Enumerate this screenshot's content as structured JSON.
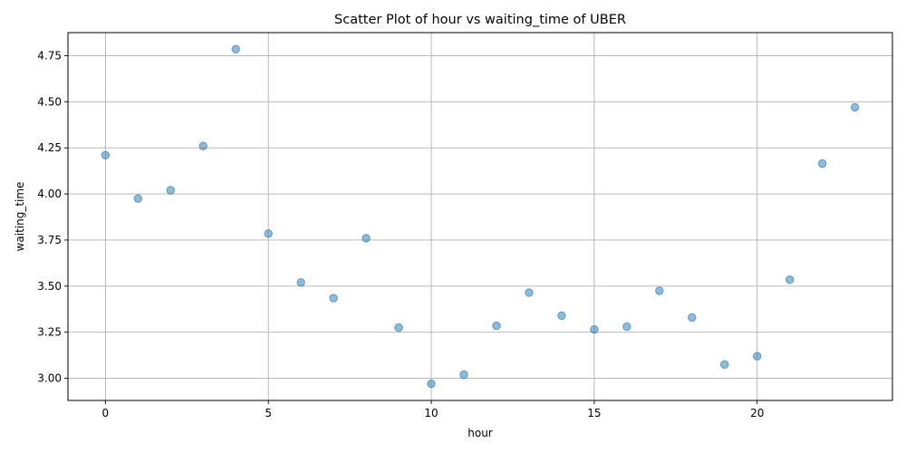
{
  "chart_data": {
    "type": "scatter",
    "title": "Scatter Plot of hour vs waiting_time of UBER",
    "xlabel": "hour",
    "ylabel": "waiting_time",
    "xlim": [
      -1.15,
      24.15
    ],
    "ylim": [
      2.88,
      4.875
    ],
    "xticks": [
      0,
      5,
      10,
      15,
      20
    ],
    "xtick_labels": [
      "0",
      "5",
      "10",
      "15",
      "20"
    ],
    "yticks": [
      3.0,
      3.25,
      3.5,
      3.75,
      4.0,
      4.25,
      4.5,
      4.75
    ],
    "ytick_labels": [
      "3.00",
      "3.25",
      "3.50",
      "3.75",
      "4.00",
      "4.25",
      "4.50",
      "4.75"
    ],
    "grid": true,
    "marker_color": "#1f77b4",
    "marker_alpha": 0.5,
    "x": [
      0,
      1,
      2,
      3,
      4,
      5,
      6,
      7,
      8,
      9,
      10,
      11,
      12,
      13,
      14,
      15,
      16,
      17,
      18,
      19,
      20,
      21,
      22,
      23
    ],
    "y": [
      4.21,
      3.975,
      4.02,
      4.26,
      4.785,
      3.785,
      3.52,
      3.435,
      3.76,
      3.275,
      2.97,
      3.02,
      3.285,
      3.465,
      3.34,
      3.265,
      3.28,
      3.475,
      3.33,
      3.075,
      3.12,
      3.535,
      4.165,
      4.47
    ]
  }
}
